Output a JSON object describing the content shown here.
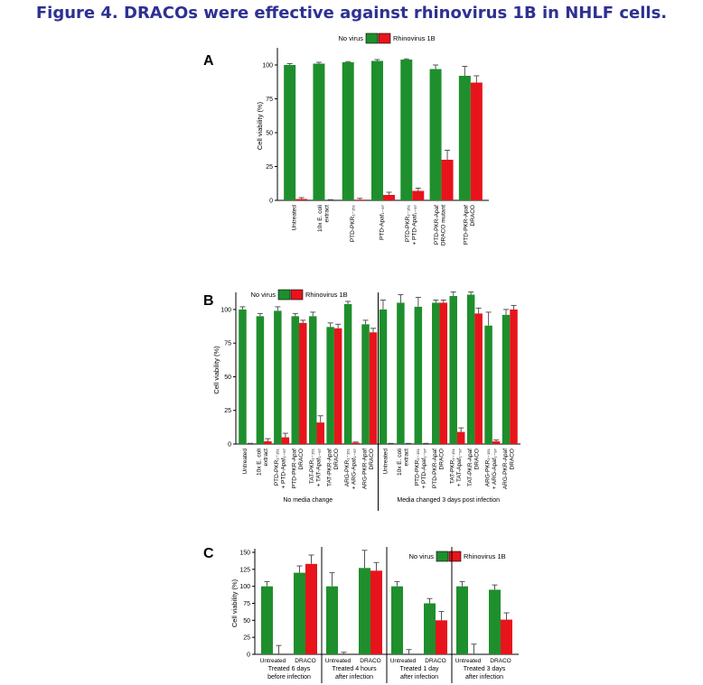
{
  "figure": {
    "title": "Figure 4. DRACOs were effective against rhinovirus 1B in NHLF cells.",
    "colors": {
      "no_virus": "#1e8f2c",
      "rhinovirus": "#e8141b",
      "title": "#2e3192"
    }
  },
  "chart_data": [
    {
      "panel": "A",
      "type": "bar",
      "ylabel": "Cell viability (%)",
      "ylim": [
        0,
        110
      ],
      "yticks": [
        0,
        25,
        50,
        75,
        100
      ],
      "legend": [
        "No virus",
        "Rhinovirus 1B"
      ],
      "legend_position": "top",
      "categories": [
        "Untreated",
        "10x E. coli extract",
        "PTD-PKR₁₋₁₅₁",
        "PTD-Apaf₁₋₉₇",
        "PTD-PKR₁₋₁₅₁ + PTD-Apaf₁₋₉₇",
        "PTD-PKR-Apaf DRACO mutant",
        "PTD-PKR-Apaf DRACO"
      ],
      "series": [
        {
          "name": "No virus",
          "values": [
            100,
            101,
            102,
            103,
            104,
            97,
            92
          ],
          "errors": [
            1,
            1,
            0.5,
            1,
            0.5,
            3,
            7
          ]
        },
        {
          "name": "Rhinovirus 1B",
          "values": [
            1,
            0,
            0.5,
            4,
            7,
            30,
            87
          ],
          "errors": [
            1,
            0.5,
            1,
            2,
            2,
            7,
            5
          ]
        }
      ]
    },
    {
      "panel": "B",
      "type": "bar",
      "ylabel": "Cell viability (%)",
      "ylim": [
        0,
        110
      ],
      "yticks": [
        0,
        25,
        50,
        75,
        100
      ],
      "legend": [
        "No virus",
        "Rhinovirus 1B"
      ],
      "legend_position": "top-left",
      "groups": [
        {
          "label": "No media change",
          "categories": [
            "Untreated",
            "10x E. coli extract",
            "PTD-PKR₁₋₁₅₁ + PTD-Apaf₁₋₉₇",
            "PTD-PKR-Apaf DRACO",
            "TAT-PKR₁₋₁₅₁ + TAT-Apaf₁₋₉₇",
            "TAT-PKR-Apaf DRACO",
            "ARG-PKR₁₋₁₅₁ + ARG-Apaf₁₋₉₇",
            "ARG-PKR-Apaf DRACO"
          ],
          "series": [
            {
              "name": "No virus",
              "values": [
                100,
                95,
                99,
                95,
                95,
                87,
                104,
                89
              ],
              "errors": [
                2,
                2,
                3,
                2,
                3,
                3,
                2,
                3
              ]
            },
            {
              "name": "Rhinovirus 1B",
              "values": [
                0,
                2,
                5,
                90,
                16,
                86,
                1,
                83
              ],
              "errors": [
                0.5,
                2,
                3,
                2,
                5,
                3,
                0.5,
                3
              ]
            }
          ]
        },
        {
          "label": "Media changed 3 days post infection",
          "categories": [
            "Untreated",
            "10x E. coli extract",
            "PTD-PKR₁₋₁₅₁ + PTD-Apaf₁₋₉₇",
            "PTD-PKR-Apaf DRACO",
            "TAT-PKR₁₋₁₅₁ + TAT-Apaf₁₋₉₇",
            "TAT-PKR-Apaf DRACO",
            "ARG-PKR₁₋₁₅₁ + ARG-Apaf₁₋₉₇",
            "ARG-PKR-Apaf DRACO"
          ],
          "series": [
            {
              "name": "No virus",
              "values": [
                100,
                105,
                102,
                105,
                110,
                111,
                88,
                96
              ],
              "errors": [
                7,
                6,
                7,
                2,
                3,
                2,
                10,
                4
              ]
            },
            {
              "name": "Rhinovirus 1B",
              "values": [
                0,
                0,
                0,
                105,
                9,
                97,
                2,
                100
              ],
              "errors": [
                0.5,
                0.5,
                0.5,
                2,
                3,
                4,
                1,
                3
              ]
            }
          ]
        }
      ]
    },
    {
      "panel": "C",
      "type": "bar",
      "ylabel": "Cell viability (%)",
      "ylim": [
        0,
        150
      ],
      "yticks": [
        0,
        25,
        50,
        75,
        100,
        125,
        150
      ],
      "legend": [
        "No virus",
        "Rhinovirus 1B"
      ],
      "legend_position": "top-right",
      "groups": [
        {
          "label": "Treated 6 days before infection",
          "categories": [
            "Untreated",
            "DRACO"
          ],
          "series": [
            {
              "name": "No virus",
              "values": [
                100,
                120
              ],
              "errors": [
                7,
                10
              ]
            },
            {
              "name": "Rhinovirus 1B",
              "values": [
                0,
                133
              ],
              "errors": [
                13,
                13
              ]
            }
          ]
        },
        {
          "label": "Treated 4 hours after infection",
          "categories": [
            "Untreated",
            "DRACO"
          ],
          "series": [
            {
              "name": "No virus",
              "values": [
                100,
                127
              ],
              "errors": [
                20,
                26
              ]
            },
            {
              "name": "Rhinovirus 1B",
              "values": [
                0,
                123
              ],
              "errors": [
                3,
                12
              ]
            }
          ]
        },
        {
          "label": "Treated 1 day after infection",
          "categories": [
            "Untreated",
            "DRACO"
          ],
          "series": [
            {
              "name": "No virus",
              "values": [
                100,
                75
              ],
              "errors": [
                7,
                7
              ]
            },
            {
              "name": "Rhinovirus 1B",
              "values": [
                0,
                50
              ],
              "errors": [
                7,
                13
              ]
            }
          ]
        },
        {
          "label": "Treated 3 days after infection",
          "categories": [
            "Untreated",
            "DRACO"
          ],
          "series": [
            {
              "name": "No virus",
              "values": [
                100,
                95
              ],
              "errors": [
                7,
                7
              ]
            },
            {
              "name": "Rhinovirus 1B",
              "values": [
                0,
                51
              ],
              "errors": [
                15,
                10
              ]
            }
          ]
        }
      ]
    }
  ]
}
